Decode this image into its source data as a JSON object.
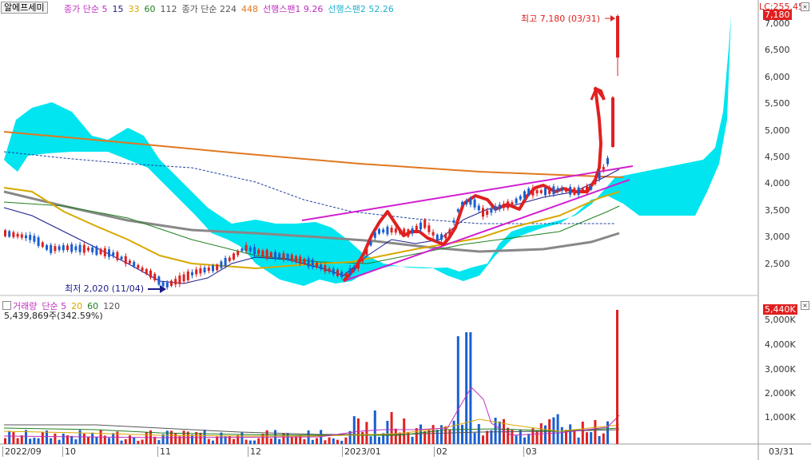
{
  "stock_name": "알에프세미",
  "price_legend": [
    {
      "text": "종가 단순 5",
      "color": "#c030c0"
    },
    {
      "text": "15",
      "color": "#1a1a8a"
    },
    {
      "text": "33",
      "color": "#d8a800"
    },
    {
      "text": "60",
      "color": "#208020"
    },
    {
      "text": "112",
      "color": "#555555"
    },
    {
      "text": "종가 단순 224",
      "color": "#555555"
    },
    {
      "text": "448",
      "color": "#e07820"
    },
    {
      "text": "선행스팬1 9.26",
      "color": "#c030c0"
    },
    {
      "text": "선행스팬2 52.26",
      "color": "#20b0d0"
    }
  ],
  "lc_label": "LC:255.45",
  "current_price": "7,180",
  "high_annotation": "최고 7,180 (03/31)",
  "low_annotation": "최저 2,020 (11/04)",
  "price_ticks": [
    "7,000",
    "6,500",
    "6,000",
    "5,500",
    "5,000",
    "4,500",
    "4,000",
    "3,500",
    "3,000",
    "2,500"
  ],
  "volume_legend": [
    {
      "text": "거래량",
      "color": "#c030c0"
    },
    {
      "text": "단순 5",
      "color": "#c030c0"
    },
    {
      "text": "20",
      "color": "#d8a800"
    },
    {
      "text": "60",
      "color": "#208020"
    },
    {
      "text": "120",
      "color": "#555555"
    }
  ],
  "volume_readout": "5,439,869주(342.59%)",
  "current_volume": "5,440K",
  "volume_ticks": [
    "5,000K",
    "4,000K",
    "3,000K",
    "2,000K",
    "1,000K"
  ],
  "date_labels": [
    "2022/09",
    "10",
    "11",
    "12",
    "2023/01",
    "02",
    "03"
  ],
  "axis_end_date": "03/31",
  "colors": {
    "up": "#e02020",
    "down": "#1a5fd0",
    "cloud": "#00e5f0",
    "trend": "#d020d0",
    "annotation": "#e02020"
  }
}
